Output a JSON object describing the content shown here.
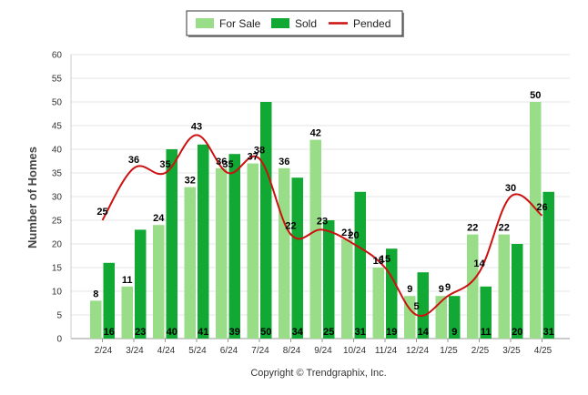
{
  "chart_data": {
    "type": "bar",
    "ylabel": "Number of Homes",
    "ylim": [
      0,
      60
    ],
    "yticks": [
      0,
      5,
      10,
      15,
      20,
      25,
      30,
      35,
      40,
      45,
      50,
      55,
      60
    ],
    "grid": true,
    "legend_position": "top-center",
    "categories": [
      "2/24",
      "3/24",
      "4/24",
      "5/24",
      "6/24",
      "7/24",
      "8/24",
      "9/24",
      "10/24",
      "11/24",
      "12/24",
      "1/25",
      "2/25",
      "3/25",
      "4/25"
    ],
    "series": [
      {
        "name": "For Sale",
        "type": "bar",
        "color": "#99dd88",
        "values": [
          8,
          11,
          24,
          32,
          36,
          37,
          36,
          42,
          21,
          15,
          9,
          9,
          22,
          22,
          50
        ]
      },
      {
        "name": "Sold",
        "type": "bar",
        "color": "#11a833",
        "values": [
          16,
          23,
          40,
          41,
          39,
          50,
          34,
          25,
          31,
          19,
          14,
          9,
          11,
          20,
          31
        ]
      },
      {
        "name": "Pended",
        "type": "line",
        "color": "#cc1111",
        "values": [
          25,
          36,
          35,
          43,
          35,
          38,
          22,
          23,
          20,
          15,
          5,
          9,
          14,
          30,
          26
        ]
      }
    ]
  },
  "footer": {
    "copyright": "Copyright © Trendgraphix, Inc."
  }
}
